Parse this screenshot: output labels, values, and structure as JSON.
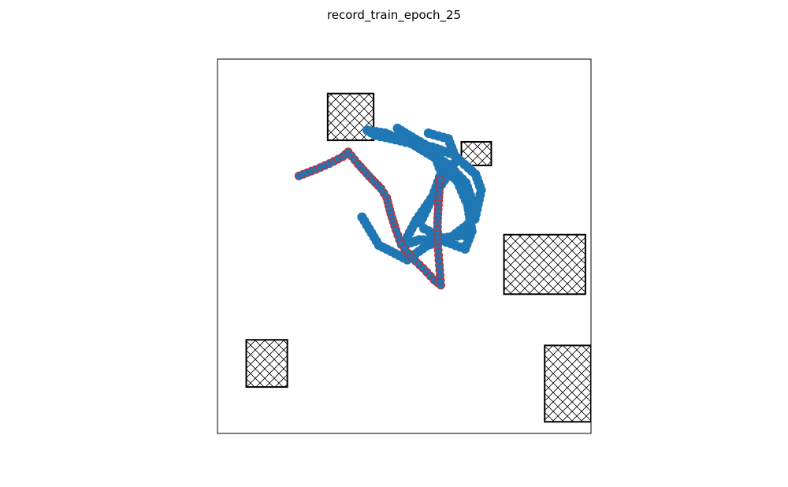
{
  "chart_data": {
    "type": "scatter",
    "title": "record_train_epoch_25",
    "xlim": [
      0,
      1
    ],
    "ylim": [
      0,
      1
    ],
    "axes_visible": false,
    "grid": false,
    "colors": {
      "trajectory": "#1f77b4",
      "highlight_edge": "#d62728",
      "obstacle_edge": "#000000"
    },
    "obstacles": [
      {
        "x0": 0.295,
        "y0": 0.783,
        "x1": 0.418,
        "y1": 0.908
      },
      {
        "x0": 0.653,
        "y0": 0.716,
        "x1": 0.733,
        "y1": 0.779
      },
      {
        "x0": 0.767,
        "y0": 0.372,
        "x1": 0.985,
        "y1": 0.531
      },
      {
        "x0": 0.077,
        "y0": 0.124,
        "x1": 0.187,
        "y1": 0.25
      },
      {
        "x0": 0.876,
        "y0": 0.031,
        "x1": 1.0,
        "y1": 0.235
      }
    ],
    "trajectories": [
      {
        "points": [
          [
            0.387,
            0.578
          ],
          [
            0.432,
            0.503
          ],
          [
            0.508,
            0.464
          ],
          [
            0.56,
            0.501
          ],
          [
            0.628,
            0.526
          ],
          [
            0.689,
            0.573
          ],
          [
            0.706,
            0.65
          ],
          [
            0.691,
            0.692
          ],
          [
            0.632,
            0.745
          ],
          [
            0.575,
            0.765
          ],
          [
            0.517,
            0.775
          ],
          [
            0.463,
            0.788
          ],
          [
            0.423,
            0.796
          ],
          [
            0.401,
            0.81
          ],
          [
            0.449,
            0.802
          ],
          [
            0.52,
            0.774
          ],
          [
            0.591,
            0.731
          ],
          [
            0.643,
            0.672
          ],
          [
            0.67,
            0.61
          ],
          [
            0.681,
            0.54
          ],
          [
            0.663,
            0.493
          ],
          [
            0.6,
            0.516
          ],
          [
            0.54,
            0.517
          ],
          [
            0.497,
            0.503
          ],
          [
            0.532,
            0.57
          ],
          [
            0.579,
            0.637
          ],
          [
            0.614,
            0.685
          ],
          [
            0.639,
            0.732
          ],
          [
            0.618,
            0.787
          ],
          [
            0.565,
            0.802
          ]
        ],
        "highlight": false
      },
      {
        "points": [
          [
            0.543,
            0.563
          ],
          [
            0.576,
            0.632
          ],
          [
            0.599,
            0.697
          ],
          [
            0.575,
            0.76
          ],
          [
            0.52,
            0.792
          ],
          [
            0.482,
            0.815
          ],
          [
            0.519,
            0.785
          ],
          [
            0.566,
            0.752
          ],
          [
            0.617,
            0.719
          ],
          [
            0.665,
            0.67
          ],
          [
            0.688,
            0.603
          ],
          [
            0.67,
            0.531
          ],
          [
            0.603,
            0.522
          ],
          [
            0.553,
            0.547
          ]
        ],
        "highlight": false
      },
      {
        "points": [
          [
            0.218,
            0.688
          ],
          [
            0.263,
            0.705
          ],
          [
            0.3,
            0.721
          ],
          [
            0.335,
            0.739
          ],
          [
            0.35,
            0.752
          ],
          [
            0.376,
            0.72
          ],
          [
            0.406,
            0.687
          ],
          [
            0.438,
            0.654
          ],
          [
            0.453,
            0.63
          ],
          [
            0.464,
            0.587
          ],
          [
            0.478,
            0.543
          ],
          [
            0.492,
            0.504
          ],
          [
            0.52,
            0.47
          ],
          [
            0.551,
            0.441
          ],
          [
            0.58,
            0.41
          ],
          [
            0.598,
            0.396
          ],
          [
            0.594,
            0.449
          ],
          [
            0.59,
            0.503
          ],
          [
            0.589,
            0.563
          ],
          [
            0.592,
            0.621
          ],
          [
            0.596,
            0.678
          ]
        ],
        "highlight": true
      }
    ]
  }
}
